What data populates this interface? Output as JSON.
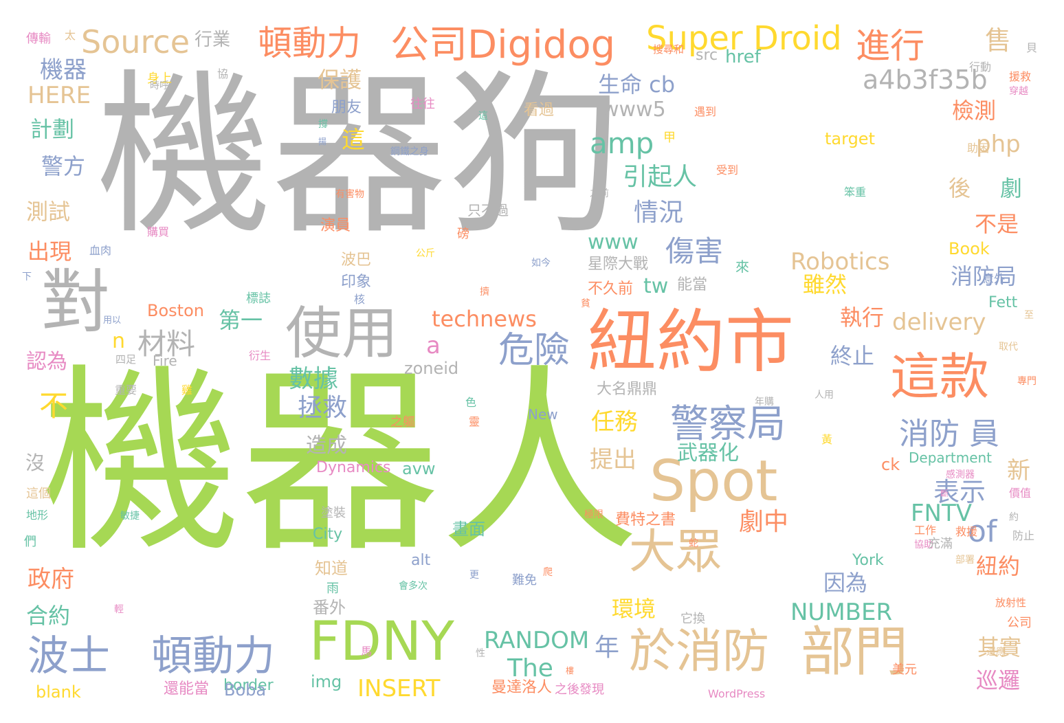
{
  "palette": {
    "gray": "#b3b3b3",
    "green": "#a6d854",
    "orange": "#fc8d62",
    "blue": "#8da0cb",
    "tan": "#e5c494",
    "yellow": "#ffd92f",
    "teal": "#66c2a5",
    "pink": "#e78ac3"
  },
  "words": [
    {
      "text": "機器狗",
      "color": "gray"
    },
    {
      "text": "機器人",
      "color": "green"
    },
    {
      "text": "紐約市",
      "color": "orange"
    },
    {
      "text": "Spot",
      "color": "tan"
    },
    {
      "text": "使用",
      "color": "gray"
    },
    {
      "text": "對",
      "color": "gray"
    },
    {
      "text": "FDNY",
      "color": "green"
    },
    {
      "text": "部門",
      "color": "tan"
    },
    {
      "text": "這款",
      "color": "orange"
    },
    {
      "text": "於消防",
      "color": "tan"
    },
    {
      "text": "大眾",
      "color": "tan"
    },
    {
      "text": "波士",
      "color": "blue"
    },
    {
      "text": "頓動力",
      "color": "blue"
    },
    {
      "text": "警察局",
      "color": "blue"
    },
    {
      "text": "危險",
      "color": "blue"
    },
    {
      "text": "公司Digidog",
      "color": "orange"
    },
    {
      "text": "頓動力",
      "color": "orange"
    },
    {
      "text": "Super Droid",
      "color": "yellow"
    },
    {
      "text": "進行",
      "color": "orange"
    },
    {
      "text": "Source",
      "color": "tan"
    },
    {
      "text": "消防 員",
      "color": "blue"
    },
    {
      "text": "材料",
      "color": "gray"
    },
    {
      "text": "傷害",
      "color": "blue"
    },
    {
      "text": "amp",
      "color": "teal"
    },
    {
      "text": "a4b3f35b",
      "color": "gray"
    },
    {
      "text": "technews",
      "color": "orange"
    },
    {
      "text": "Robotics",
      "color": "tan"
    },
    {
      "text": "delivery",
      "color": "tan"
    },
    {
      "text": "RANDOM",
      "color": "teal"
    },
    {
      "text": "NUMBER",
      "color": "teal"
    },
    {
      "text": "INSERT",
      "color": "yellow"
    },
    {
      "text": "FNTV",
      "color": "teal"
    },
    {
      "text": "of",
      "color": "blue"
    },
    {
      "text": "The",
      "color": "teal"
    },
    {
      "text": "表示",
      "color": "blue"
    },
    {
      "text": "劇中",
      "color": "orange"
    },
    {
      "text": "拯救",
      "color": "blue"
    },
    {
      "text": "數據",
      "color": "teal"
    },
    {
      "text": "任務",
      "color": "yellow"
    },
    {
      "text": "提出",
      "color": "tan"
    },
    {
      "text": "情況",
      "color": "blue"
    },
    {
      "text": "引起人",
      "color": "teal"
    },
    {
      "text": "www5",
      "color": "gray"
    },
    {
      "text": "生命 cb",
      "color": "blue"
    },
    {
      "text": "保護",
      "color": "tan"
    },
    {
      "text": "機器",
      "color": "blue"
    },
    {
      "text": "HERE",
      "color": "tan"
    },
    {
      "text": "計劃",
      "color": "teal"
    },
    {
      "text": "警方",
      "color": "blue"
    },
    {
      "text": "測試",
      "color": "tan"
    },
    {
      "text": "出現",
      "color": "orange"
    },
    {
      "text": "認為",
      "color": "pink"
    },
    {
      "text": "政府",
      "color": "orange"
    },
    {
      "text": "合約",
      "color": "teal"
    },
    {
      "text": "第一",
      "color": "teal"
    },
    {
      "text": "環境",
      "color": "yellow"
    },
    {
      "text": "年",
      "color": "blue"
    },
    {
      "text": "因為",
      "color": "blue"
    },
    {
      "text": "紐約",
      "color": "orange"
    },
    {
      "text": "其實",
      "color": "tan"
    },
    {
      "text": "巡邏",
      "color": "pink"
    },
    {
      "text": "消防局",
      "color": "blue"
    },
    {
      "text": "雖然",
      "color": "yellow"
    },
    {
      "text": "執行",
      "color": "orange"
    },
    {
      "text": "終止",
      "color": "blue"
    },
    {
      "text": "檢測",
      "color": "orange"
    },
    {
      "text": "php",
      "color": "tan"
    },
    {
      "text": "不是",
      "color": "orange"
    },
    {
      "text": "武器化",
      "color": "teal"
    },
    {
      "text": "造成",
      "color": "gray"
    },
    {
      "text": "www",
      "color": "teal"
    },
    {
      "text": "tw",
      "color": "teal"
    },
    {
      "text": "行業",
      "color": "gray"
    },
    {
      "text": "朋友",
      "color": "blue"
    },
    {
      "text": "看過",
      "color": "tan"
    },
    {
      "text": "往往",
      "color": "pink"
    },
    {
      "text": "只不過",
      "color": "gray"
    },
    {
      "text": "星際大戰",
      "color": "gray"
    },
    {
      "text": "不久前",
      "color": "orange"
    },
    {
      "text": "能當",
      "color": "gray"
    },
    {
      "text": "波巴",
      "color": "tan"
    },
    {
      "text": "印象",
      "color": "blue"
    },
    {
      "text": "演員",
      "color": "orange"
    },
    {
      "text": "Boston",
      "color": "orange"
    },
    {
      "text": "Fire",
      "color": "gray"
    },
    {
      "text": "zoneid",
      "color": "gray"
    },
    {
      "text": "Dynamics",
      "color": "pink"
    },
    {
      "text": "avw",
      "color": "teal"
    },
    {
      "text": "City",
      "color": "teal"
    },
    {
      "text": "York",
      "color": "teal"
    },
    {
      "text": "New",
      "color": "blue"
    },
    {
      "text": "Department",
      "color": "teal"
    },
    {
      "text": "Book",
      "color": "yellow"
    },
    {
      "text": "Fett",
      "color": "teal"
    },
    {
      "text": "target",
      "color": "yellow"
    },
    {
      "text": "src",
      "color": "gray"
    },
    {
      "text": "href",
      "color": "teal"
    },
    {
      "text": "alt",
      "color": "blue"
    },
    {
      "text": "img",
      "color": "teal"
    },
    {
      "text": "border",
      "color": "teal"
    },
    {
      "text": "blank",
      "color": "yellow"
    },
    {
      "text": "Boba",
      "color": "blue"
    },
    {
      "text": "WordPress",
      "color": "pink"
    },
    {
      "text": "ck",
      "color": "orange"
    },
    {
      "text": "費特之書",
      "color": "orange"
    },
    {
      "text": "曼達洛人",
      "color": "orange"
    },
    {
      "text": "之後發現",
      "color": "pink"
    },
    {
      "text": "還能當",
      "color": "pink"
    },
    {
      "text": "番外",
      "color": "gray"
    },
    {
      "text": "知道",
      "color": "tan"
    },
    {
      "text": "畫面",
      "color": "teal"
    },
    {
      "text": "大名鼎鼎",
      "color": "gray"
    },
    {
      "text": "傳輸",
      "color": "pink"
    },
    {
      "text": "身上",
      "color": "yellow"
    },
    {
      "text": "售",
      "color": "tan"
    },
    {
      "text": "劇",
      "color": "teal"
    },
    {
      "text": "後",
      "color": "tan"
    },
    {
      "text": "新",
      "color": "tan"
    },
    {
      "text": "這",
      "color": "yellow"
    },
    {
      "text": "不",
      "color": "yellow"
    },
    {
      "text": "沒",
      "color": "gray"
    },
    {
      "text": "a",
      "color": "pink"
    },
    {
      "text": "n",
      "color": "yellow"
    },
    {
      "text": "搜尋和",
      "color": "orange"
    },
    {
      "text": "行動",
      "color": "gray"
    },
    {
      "text": "援救",
      "color": "orange"
    },
    {
      "text": "穿越",
      "color": "pink"
    },
    {
      "text": "遇到",
      "color": "orange"
    },
    {
      "text": "鋼鐵之身",
      "color": "blue"
    },
    {
      "text": "受到",
      "color": "orange"
    },
    {
      "text": "有害物",
      "color": "orange"
    },
    {
      "text": "之前",
      "color": "gray"
    },
    {
      "text": "笨重",
      "color": "teal"
    },
    {
      "text": "購買",
      "color": "pink"
    },
    {
      "text": "血肉",
      "color": "blue"
    },
    {
      "text": "公斤",
      "color": "yellow"
    },
    {
      "text": "如今",
      "color": "blue"
    },
    {
      "text": "標誌",
      "color": "teal"
    },
    {
      "text": "衍生",
      "color": "pink"
    },
    {
      "text": "四足",
      "color": "gray"
    },
    {
      "text": "重要",
      "color": "gray"
    },
    {
      "text": "用以",
      "color": "blue"
    },
    {
      "text": "這個",
      "color": "tan"
    },
    {
      "text": "地形",
      "color": "teal"
    },
    {
      "text": "塗裝",
      "color": "gray"
    },
    {
      "text": "之軀",
      "color": "orange"
    },
    {
      "text": "價值",
      "color": "pink"
    },
    {
      "text": "感測器",
      "color": "pink"
    },
    {
      "text": "人用",
      "color": "gray"
    },
    {
      "text": "年購",
      "color": "gray"
    },
    {
      "text": "專門",
      "color": "orange"
    },
    {
      "text": "意外",
      "color": "blue"
    },
    {
      "text": "取代",
      "color": "tan"
    },
    {
      "text": "防止",
      "color": "gray"
    },
    {
      "text": "工作",
      "color": "orange"
    },
    {
      "text": "協助",
      "color": "pink"
    },
    {
      "text": "充滿",
      "color": "gray"
    },
    {
      "text": "部署",
      "color": "tan"
    },
    {
      "text": "救援",
      "color": "orange"
    },
    {
      "text": "極限",
      "color": "orange"
    },
    {
      "text": "放射性",
      "color": "orange"
    },
    {
      "text": "公司",
      "color": "orange"
    },
    {
      "text": "美元",
      "color": "orange"
    },
    {
      "text": "還應",
      "color": "tan"
    },
    {
      "text": "它換",
      "color": "gray"
    },
    {
      "text": "難免",
      "color": "blue"
    },
    {
      "text": "會多次",
      "color": "teal"
    },
    {
      "text": "助困",
      "color": "tan"
    },
    {
      "text": "敏捷",
      "color": "teal"
    },
    {
      "text": "太",
      "color": "tan"
    },
    {
      "text": "協",
      "color": "gray"
    },
    {
      "text": "甲",
      "color": "yellow"
    },
    {
      "text": "貝",
      "color": "gray"
    },
    {
      "text": "磅",
      "color": "orange"
    },
    {
      "text": "來",
      "color": "teal"
    },
    {
      "text": "這",
      "color": "teal"
    },
    {
      "text": "核",
      "color": "blue"
    },
    {
      "text": "撐",
      "color": "teal"
    },
    {
      "text": "時呼",
      "color": "gray"
    },
    {
      "text": "蛇",
      "color": "orange"
    },
    {
      "text": "下",
      "color": "blue"
    },
    {
      "text": "們",
      "color": "teal"
    },
    {
      "text": "輕",
      "color": "pink"
    },
    {
      "text": "雞",
      "color": "yellow"
    },
    {
      "text": "色",
      "color": "teal"
    },
    {
      "text": "靈",
      "color": "orange"
    },
    {
      "text": "黃",
      "color": "yellow"
    },
    {
      "text": "約",
      "color": "gray"
    },
    {
      "text": "爬",
      "color": "orange"
    },
    {
      "text": "更",
      "color": "blue"
    },
    {
      "text": "雨",
      "color": "teal"
    },
    {
      "text": "馬",
      "color": "pink"
    },
    {
      "text": "性",
      "color": "gray"
    },
    {
      "text": "樓",
      "color": "orange"
    },
    {
      "text": "貧",
      "color": "orange"
    },
    {
      "text": "斷",
      "color": "pink"
    },
    {
      "text": "擠",
      "color": "orange"
    },
    {
      "text": "至",
      "color": "tan"
    },
    {
      "text": "揚",
      "color": "blue"
    }
  ]
}
